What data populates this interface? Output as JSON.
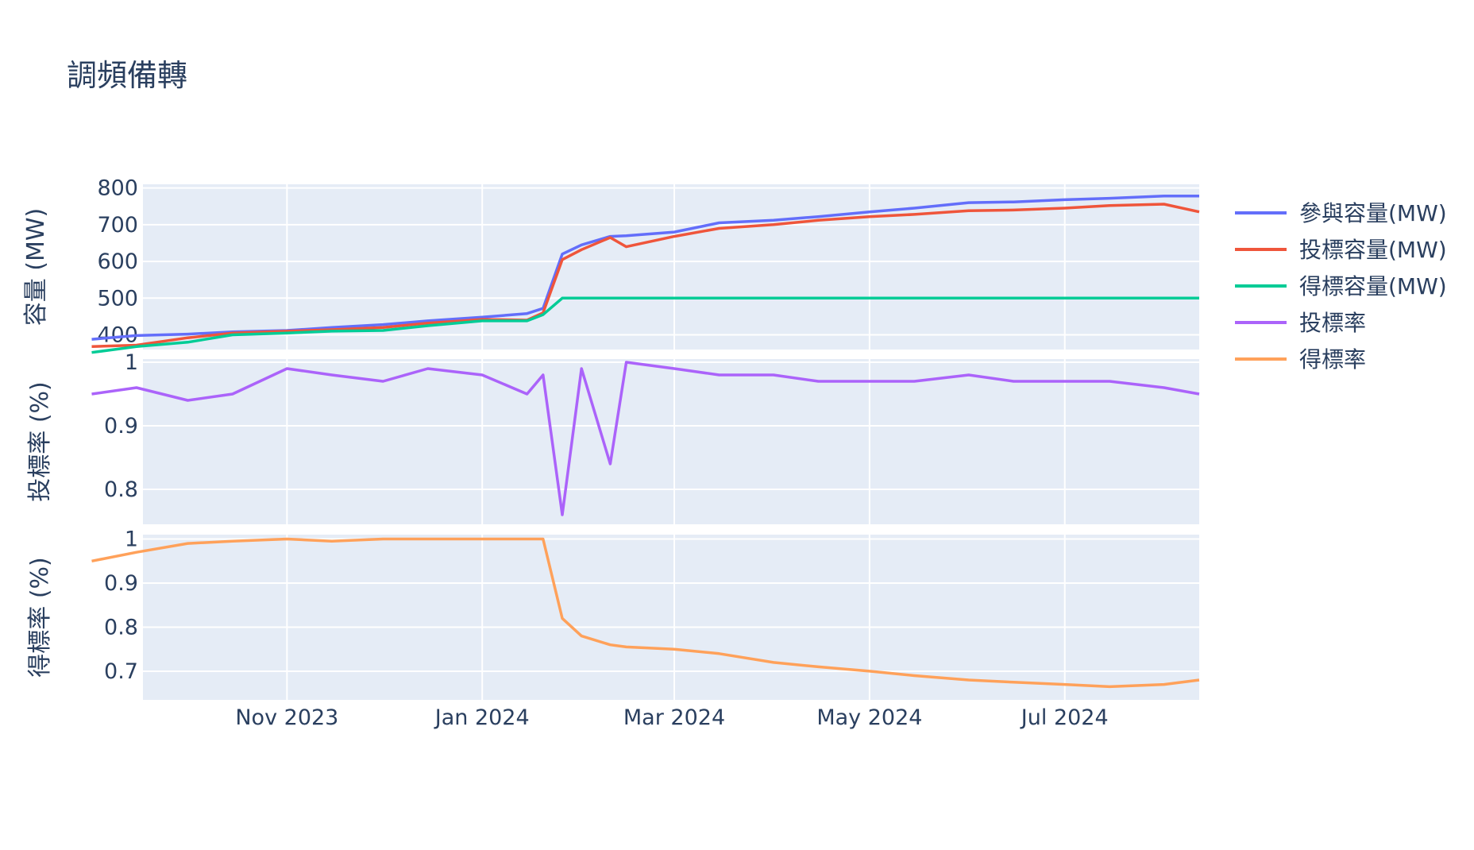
{
  "chart_data": {
    "type": "line",
    "title": "調頻備轉",
    "x": [
      "2023-09-01",
      "2023-09-15",
      "2023-10-01",
      "2023-10-15",
      "2023-11-01",
      "2023-11-15",
      "2023-12-01",
      "2023-12-15",
      "2024-01-01",
      "2024-01-15",
      "2024-01-20",
      "2024-01-26",
      "2024-02-01",
      "2024-02-10",
      "2024-02-15",
      "2024-03-01",
      "2024-03-15",
      "2024-04-01",
      "2024-04-15",
      "2024-05-01",
      "2024-05-15",
      "2024-06-01",
      "2024-06-15",
      "2024-07-01",
      "2024-07-15",
      "2024-08-01",
      "2024-08-12"
    ],
    "x_tick_labels": [
      "Nov 2023",
      "Jan 2024",
      "Mar 2024",
      "May 2024",
      "Jul 2024"
    ],
    "x_tick_values": [
      "2023-11-01",
      "2024-01-01",
      "2024-03-01",
      "2024-05-01",
      "2024-07-01"
    ],
    "x_range": [
      "2023-09-17",
      "2024-08-12"
    ],
    "legend_position": "top-right",
    "subplots": [
      {
        "ylabel": "容量 (MW)",
        "ylim": [
          360,
          810
        ],
        "y_ticks": [
          "800",
          "700",
          "600",
          "500",
          "400"
        ],
        "y_tick_values": [
          800,
          700,
          600,
          500,
          400
        ],
        "series": [
          {
            "name": "參與容量(MW)",
            "color": "#636efa",
            "values": [
              388,
              398,
              402,
              408,
              412,
              420,
              428,
              438,
              448,
              458,
              472,
              620,
              645,
              668,
              670,
              680,
              705,
              712,
              722,
              735,
              745,
              760,
              762,
              768,
              772,
              778,
              778
            ]
          },
          {
            "name": "投標容量(MW)",
            "color": "#ef553b",
            "values": [
              368,
              372,
              392,
              405,
              410,
              414,
              420,
              432,
              442,
              440,
              460,
              605,
              632,
              665,
              640,
              668,
              690,
              700,
              712,
              722,
              728,
              738,
              740,
              745,
              752,
              756,
              735
            ]
          },
          {
            "name": "得標容量(MW)",
            "color": "#00cc96",
            "values": [
              352,
              368,
              380,
              400,
              405,
              410,
              412,
              425,
              438,
              438,
              455,
              500,
              500,
              500,
              500,
              500,
              500,
              500,
              500,
              500,
              500,
              500,
              500,
              500,
              500,
              500,
              500
            ]
          }
        ]
      },
      {
        "ylabel": "投標率 (%)",
        "ylim": [
          0.745,
          1.005
        ],
        "y_ticks": [
          "1",
          "0.9",
          "0.8"
        ],
        "y_tick_values": [
          1,
          0.9,
          0.8
        ],
        "series": [
          {
            "name": "投標率",
            "color": "#ab63fa",
            "values": [
              0.95,
              0.96,
              0.94,
              0.95,
              0.99,
              0.98,
              0.97,
              0.99,
              0.98,
              0.95,
              0.98,
              0.76,
              0.99,
              0.84,
              1.0,
              0.99,
              0.98,
              0.98,
              0.97,
              0.97,
              0.97,
              0.98,
              0.97,
              0.97,
              0.97,
              0.96,
              0.95
            ]
          }
        ]
      },
      {
        "ylabel": "得標率 (%)",
        "ylim": [
          0.635,
          1.01
        ],
        "y_ticks": [
          "1",
          "0.9",
          "0.8",
          "0.7"
        ],
        "y_tick_values": [
          1,
          0.9,
          0.8,
          0.7
        ],
        "series": [
          {
            "name": "得標率",
            "color": "#ffa15a",
            "values": [
              0.95,
              0.97,
              0.99,
              0.995,
              1.0,
              0.995,
              1.0,
              1.0,
              1.0,
              1.0,
              1.0,
              0.82,
              0.78,
              0.76,
              0.755,
              0.75,
              0.74,
              0.72,
              0.71,
              0.7,
              0.69,
              0.68,
              0.675,
              0.67,
              0.665,
              0.67,
              0.68
            ]
          }
        ]
      }
    ]
  }
}
